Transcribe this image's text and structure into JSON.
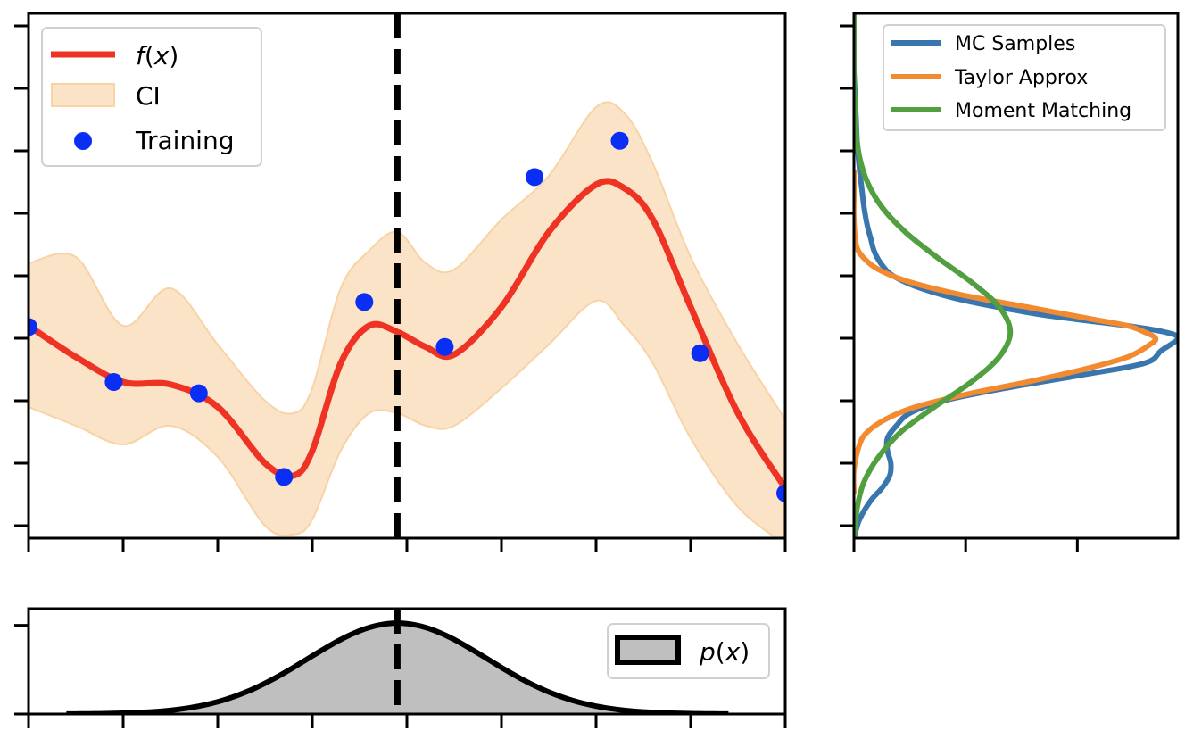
{
  "chart_data": [
    {
      "id": "main",
      "type": "line",
      "xlim": [
        0,
        8
      ],
      "ylim": [
        -1.35,
        2.85
      ],
      "grid": false,
      "tick_labels_shown": false,
      "x_ticks": [
        0,
        1,
        2,
        3,
        4,
        5,
        6,
        7,
        8
      ],
      "y_ticks": [
        -1.25,
        -0.75,
        -0.25,
        0.25,
        0.75,
        1.25,
        1.75,
        2.25,
        2.75
      ],
      "vline_x": 3.9,
      "legend": {
        "position": "top-left",
        "entries": [
          "f(x)",
          "CI",
          "Training"
        ]
      },
      "colors": {
        "mean": "#ee3224",
        "ci": "#fbe3c8",
        "ci_edge": "#f7d3a6",
        "training": "#0a2ef4",
        "vline": "#000000"
      },
      "series": [
        {
          "name": "f(x)",
          "kind": "mean",
          "x": [
            0,
            0.5,
            1,
            1.5,
            2,
            2.5,
            2.8,
            3,
            3.3,
            3.6,
            3.9,
            4.2,
            4.5,
            5,
            5.5,
            6,
            6.3,
            6.6,
            7,
            7.5,
            8
          ],
          "y": [
            0.35,
            0.1,
            -0.1,
            -0.12,
            -0.3,
            -0.75,
            -0.85,
            -0.65,
            0.05,
            0.35,
            0.3,
            0.18,
            0.12,
            0.5,
            1.1,
            1.48,
            1.45,
            1.2,
            0.5,
            -0.35,
            -0.95
          ]
        },
        {
          "name": "CI",
          "kind": "band",
          "x": [
            0,
            0.5,
            1,
            1.5,
            2,
            2.5,
            2.8,
            3,
            3.3,
            3.6,
            3.9,
            4.2,
            4.5,
            5,
            5.5,
            6,
            6.3,
            6.6,
            7,
            7.5,
            8
          ],
          "lower": [
            -0.3,
            -0.45,
            -0.6,
            -0.45,
            -0.7,
            -1.25,
            -1.32,
            -1.2,
            -0.65,
            -0.35,
            -0.35,
            -0.45,
            -0.45,
            -0.15,
            0.2,
            0.55,
            0.35,
            0.05,
            -0.55,
            -1.1,
            -1.4
          ],
          "upper": [
            0.85,
            0.9,
            0.35,
            0.65,
            0.2,
            -0.25,
            -0.35,
            -0.15,
            0.65,
            0.95,
            1.1,
            0.85,
            0.8,
            1.2,
            1.55,
            2.1,
            2.05,
            1.65,
            0.9,
            0.2,
            -0.4
          ]
        },
        {
          "name": "Training",
          "kind": "scatter",
          "x": [
            0,
            0.9,
            1.8,
            2.7,
            3.55,
            4.4,
            5.35,
            6.25,
            7.1,
            8
          ],
          "y": [
            0.34,
            -0.1,
            -0.19,
            -0.86,
            0.54,
            0.18,
            1.54,
            1.83,
            0.13,
            -0.99
          ]
        }
      ]
    },
    {
      "id": "right",
      "type": "line",
      "orientation": "horizontal-density",
      "xlim": [
        0,
        2.9
      ],
      "ylim": [
        -1.35,
        2.85
      ],
      "grid": false,
      "tick_labels_shown": false,
      "x_ticks": [
        0,
        1,
        2
      ],
      "legend": {
        "position": "top-right",
        "entries": [
          "MC Samples",
          "Taylor Approx",
          "Moment Matching"
        ]
      },
      "series": [
        {
          "name": "MC Samples",
          "color": "#3a76ae",
          "y": [
            -1.35,
            -1.2,
            -1.05,
            -0.95,
            -0.85,
            -0.75,
            -0.65,
            -0.55,
            -0.45,
            -0.35,
            -0.25,
            -0.15,
            -0.05,
            0.05,
            0.15,
            0.25,
            0.3,
            0.35,
            0.4,
            0.45,
            0.55,
            0.65,
            0.75,
            0.85,
            0.95,
            1.05,
            1.15,
            1.3,
            1.45,
            1.6,
            1.8,
            2.0,
            2.2,
            2.4,
            2.6,
            2.85
          ],
          "density": [
            0.0,
            0.05,
            0.15,
            0.25,
            0.32,
            0.33,
            0.3,
            0.3,
            0.38,
            0.5,
            0.8,
            1.35,
            2.0,
            2.6,
            2.75,
            2.9,
            2.78,
            2.45,
            2.0,
            1.6,
            1.0,
            0.6,
            0.35,
            0.24,
            0.18,
            0.15,
            0.12,
            0.09,
            0.07,
            0.05,
            0.03,
            0.02,
            0.01,
            0.0,
            0.0,
            0.0
          ]
        },
        {
          "name": "Taylor Approx",
          "color": "#f28a30",
          "y": [
            -1.0,
            -0.8,
            -0.6,
            -0.5,
            -0.4,
            -0.3,
            -0.2,
            -0.1,
            0.0,
            0.1,
            0.2,
            0.25,
            0.3,
            0.35,
            0.4,
            0.5,
            0.6,
            0.7,
            0.8,
            0.9,
            1.0,
            1.2,
            1.4,
            1.6
          ],
          "density": [
            0.0,
            0.0,
            0.05,
            0.12,
            0.28,
            0.55,
            1.0,
            1.55,
            2.05,
            2.45,
            2.65,
            2.7,
            2.6,
            2.45,
            2.15,
            1.55,
            0.95,
            0.5,
            0.22,
            0.08,
            0.02,
            0.0,
            0.0,
            0.0
          ]
        },
        {
          "name": "Moment Matching",
          "color": "#519f3f",
          "y": [
            -1.35,
            -1.1,
            -0.9,
            -0.7,
            -0.5,
            -0.3,
            -0.1,
            0.1,
            0.3,
            0.5,
            0.7,
            0.9,
            1.1,
            1.3,
            1.5,
            1.7,
            1.9,
            2.1,
            2.3,
            2.5,
            2.7,
            2.85
          ],
          "density": [
            0.0,
            0.03,
            0.09,
            0.22,
            0.42,
            0.72,
            1.05,
            1.3,
            1.4,
            1.3,
            1.05,
            0.74,
            0.46,
            0.25,
            0.12,
            0.05,
            0.02,
            0.01,
            0.0,
            0.0,
            0.0,
            0.0
          ]
        }
      ]
    },
    {
      "id": "bottom",
      "type": "area",
      "xlim": [
        0,
        8
      ],
      "ylim": [
        0,
        0.95
      ],
      "grid": false,
      "tick_labels_shown": false,
      "x_ticks": [
        0,
        1,
        2,
        3,
        4,
        5,
        6,
        7,
        8
      ],
      "y_ticks": [
        0,
        0.8
      ],
      "vline_x": 3.9,
      "legend": {
        "position": "right",
        "entries": [
          "p(x)"
        ]
      },
      "colors": {
        "fill": "#bfbfbf",
        "edge": "#000000"
      },
      "series": [
        {
          "name": "p(x)",
          "x_range": [
            0.4,
            7.4
          ],
          "mean": 3.9,
          "std": 0.95,
          "peak": 0.82
        }
      ]
    }
  ]
}
